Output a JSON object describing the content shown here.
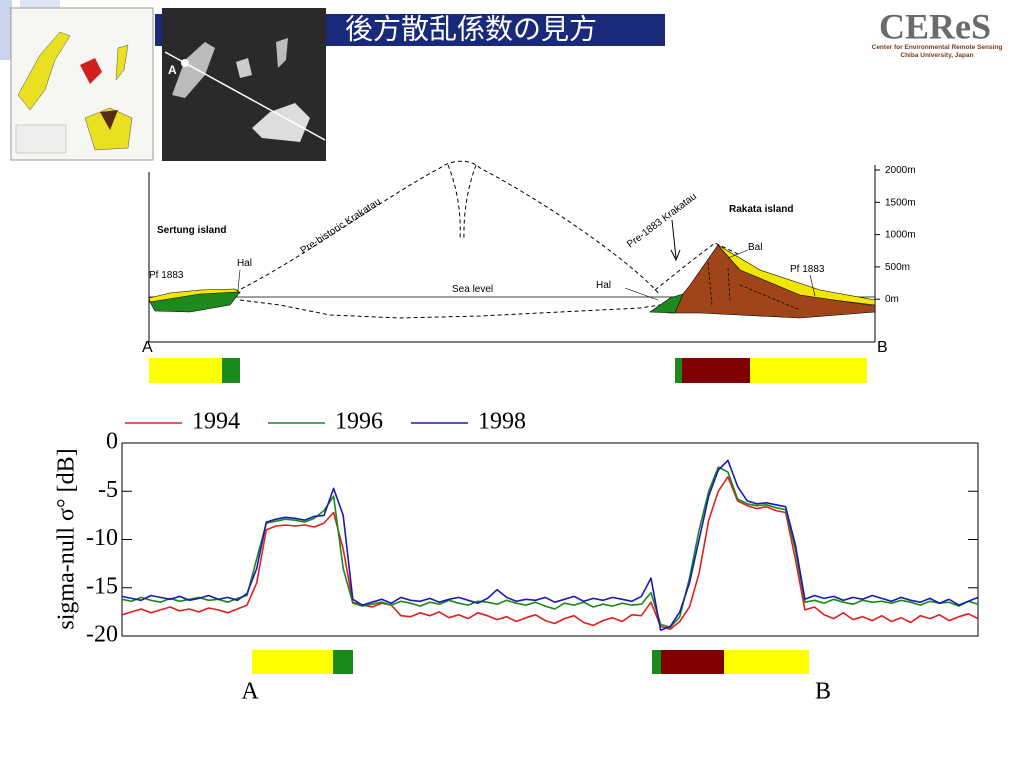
{
  "slide": {
    "title": "後方散乱係数の見方",
    "logo": {
      "name": "CEReS",
      "line1": "Center for Environmental Remote Sensing",
      "line2": "Chiba University, Japan"
    },
    "image_label": "A"
  },
  "section": {
    "labels": {
      "sertung": "Sertung island",
      "prehistoric": "Pre-historic Krakatau",
      "pre1883": "Pre-1883 Krakatau",
      "rakata": "Rakata island",
      "hal_left": "Hal",
      "hal_right": "Hal",
      "pf_left": "Pf 1883",
      "pf_right": "Pf 1883",
      "bal": "Bal",
      "sea": "Sea level",
      "a": "A",
      "b": "B"
    },
    "heights": [
      "2000m",
      "1500m",
      "1000m",
      "500m",
      "0m"
    ]
  },
  "chart_data": {
    "type": "line",
    "ylabel": "sigma-null σ° [dB]",
    "ylim": [
      -20,
      0
    ],
    "yticks": [
      0,
      -5,
      -10,
      -15,
      -20
    ],
    "series": [
      {
        "name": "1994",
        "color": "#e02020",
        "values": [
          -17.8,
          -17.5,
          -17.2,
          -17.6,
          -17.3,
          -17.0,
          -17.4,
          -17.2,
          -17.5,
          -17.1,
          -17.3,
          -17.6,
          -17.2,
          -16.8,
          -14.5,
          -9.0,
          -8.6,
          -8.5,
          -8.6,
          -8.5,
          -8.7,
          -8.3,
          -7.2,
          -11.0,
          -16.5,
          -16.8,
          -17.0,
          -16.6,
          -16.8,
          -17.9,
          -18.0,
          -17.6,
          -17.9,
          -17.5,
          -18.1,
          -17.8,
          -18.2,
          -17.6,
          -17.9,
          -18.3,
          -18.0,
          -18.5,
          -18.1,
          -17.8,
          -18.4,
          -18.7,
          -18.2,
          -17.9,
          -18.6,
          -18.9,
          -18.4,
          -18.1,
          -18.5,
          -17.8,
          -17.9,
          -16.5,
          -19.0,
          -19.3,
          -18.5,
          -17.0,
          -13.5,
          -8.0,
          -5.0,
          -3.5,
          -6.0,
          -6.5,
          -6.8,
          -6.6,
          -7.0,
          -7.2,
          -12.0,
          -17.3,
          -17.0,
          -17.8,
          -18.2,
          -17.6,
          -18.3,
          -18.0,
          -18.4,
          -17.9,
          -18.5,
          -18.1,
          -18.6,
          -17.9,
          -18.2,
          -17.8,
          -18.4,
          -18.0,
          -17.7,
          -18.2
        ]
      },
      {
        "name": "1996",
        "color": "#1a8a1a",
        "values": [
          -16.2,
          -16.4,
          -16.0,
          -16.3,
          -16.5,
          -16.1,
          -16.4,
          -16.2,
          -16.0,
          -16.3,
          -16.2,
          -16.5,
          -16.1,
          -15.8,
          -12.0,
          -8.3,
          -8.1,
          -7.9,
          -8.0,
          -8.2,
          -7.8,
          -7.0,
          -5.5,
          -13.0,
          -16.6,
          -16.9,
          -16.7,
          -16.5,
          -16.8,
          -16.4,
          -16.6,
          -16.9,
          -16.5,
          -16.7,
          -16.3,
          -16.6,
          -16.8,
          -16.4,
          -16.5,
          -16.7,
          -16.3,
          -16.6,
          -16.8,
          -16.5,
          -16.9,
          -17.2,
          -16.6,
          -16.8,
          -16.5,
          -17.0,
          -16.7,
          -16.9,
          -16.6,
          -16.8,
          -16.7,
          -15.5,
          -18.8,
          -19.1,
          -18.0,
          -14.0,
          -9.0,
          -5.0,
          -2.5,
          -3.0,
          -5.8,
          -6.3,
          -6.5,
          -6.4,
          -6.7,
          -6.9,
          -11.0,
          -16.5,
          -16.3,
          -16.6,
          -16.2,
          -16.5,
          -16.7,
          -16.3,
          -16.5,
          -16.4,
          -16.6,
          -16.3,
          -16.5,
          -16.8,
          -16.4,
          -16.6,
          -16.5,
          -16.9,
          -16.4,
          -16.7
        ]
      },
      {
        "name": "1998",
        "color": "#1a1ab4",
        "values": [
          -15.9,
          -16.1,
          -16.3,
          -15.8,
          -16.0,
          -16.2,
          -15.9,
          -16.3,
          -16.1,
          -15.8,
          -16.2,
          -16.0,
          -16.3,
          -15.6,
          -13.0,
          -8.2,
          -7.9,
          -7.7,
          -7.8,
          -8.0,
          -7.6,
          -7.5,
          -4.7,
          -7.5,
          -16.2,
          -16.8,
          -16.5,
          -16.2,
          -16.6,
          -16.0,
          -16.3,
          -16.4,
          -16.1,
          -16.5,
          -16.2,
          -16.0,
          -16.3,
          -16.6,
          -16.1,
          -15.2,
          -16.0,
          -16.4,
          -16.2,
          -16.3,
          -16.0,
          -16.5,
          -16.2,
          -15.9,
          -16.4,
          -16.1,
          -16.3,
          -16.0,
          -16.2,
          -16.4,
          -15.9,
          -14.0,
          -19.4,
          -19.0,
          -17.5,
          -14.5,
          -10.0,
          -5.5,
          -2.8,
          -1.8,
          -4.5,
          -6.0,
          -6.3,
          -6.2,
          -6.4,
          -6.6,
          -10.5,
          -16.2,
          -15.8,
          -16.1,
          -15.9,
          -16.3,
          -16.0,
          -16.2,
          -15.8,
          -16.1,
          -16.4,
          -16.0,
          -16.3,
          -16.5,
          -16.1,
          -16.6,
          -16.2,
          -16.8,
          -16.4,
          -16.0
        ]
      }
    ],
    "endpoints": [
      "A",
      "B"
    ]
  }
}
